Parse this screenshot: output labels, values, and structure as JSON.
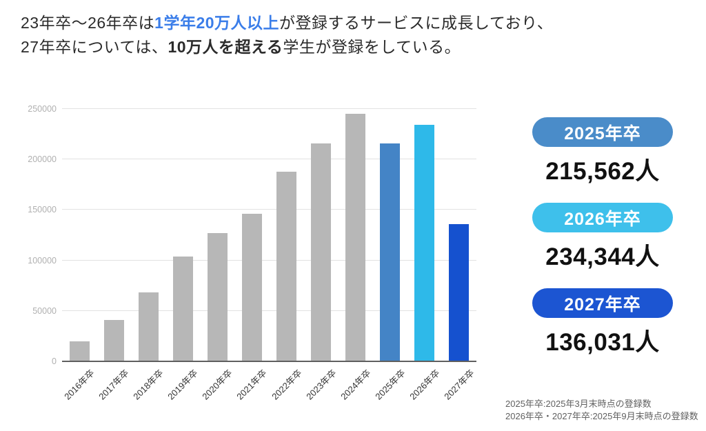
{
  "headline": {
    "line1_pre": "23年卒〜26年卒は",
    "line1_highlight": "1学年20万人以上",
    "line1_post": "が登録するサービスに成長しており、",
    "line2_pre": "27年卒については、",
    "line2_highlight": "10万人を超える",
    "line2_post": "学生が登録をしている。",
    "highlight_color": "#3A7DE9"
  },
  "chart_data": {
    "type": "bar",
    "title": "",
    "xlabel": "",
    "ylabel": "",
    "categories": [
      "2016年卒",
      "2017年卒",
      "2018年卒",
      "2019年卒",
      "2020年卒",
      "2021年卒",
      "2022年卒",
      "2023年卒",
      "2024年卒",
      "2025年卒",
      "2026年卒",
      "2027年卒"
    ],
    "values": [
      20000,
      41000,
      68000,
      104000,
      127000,
      146000,
      188000,
      216000,
      245000,
      215562,
      234344,
      136031
    ],
    "bar_colors": [
      "#B7B7B7",
      "#B7B7B7",
      "#B7B7B7",
      "#B7B7B7",
      "#B7B7B7",
      "#B7B7B7",
      "#B7B7B7",
      "#B7B7B7",
      "#B7B7B7",
      "#4484C6",
      "#2EB9E9",
      "#1551CF"
    ],
    "ylim": [
      0,
      250000
    ],
    "yticks": [
      0,
      50000,
      100000,
      150000,
      200000,
      250000
    ],
    "grid": true,
    "legend": "none"
  },
  "stats": [
    {
      "label": "2025年卒",
      "value": "215,562人",
      "color": "#4A8CC9"
    },
    {
      "label": "2026年卒",
      "value": "234,344人",
      "color": "#3EC0EB"
    },
    {
      "label": "2027年卒",
      "value": "136,031人",
      "color": "#1C55D2"
    }
  ],
  "footnotes": {
    "line1": "2025年卒:2025年3月末時点の登録数",
    "line2": "2026年卒・2027年卒:2025年9月末時点の登録数"
  }
}
